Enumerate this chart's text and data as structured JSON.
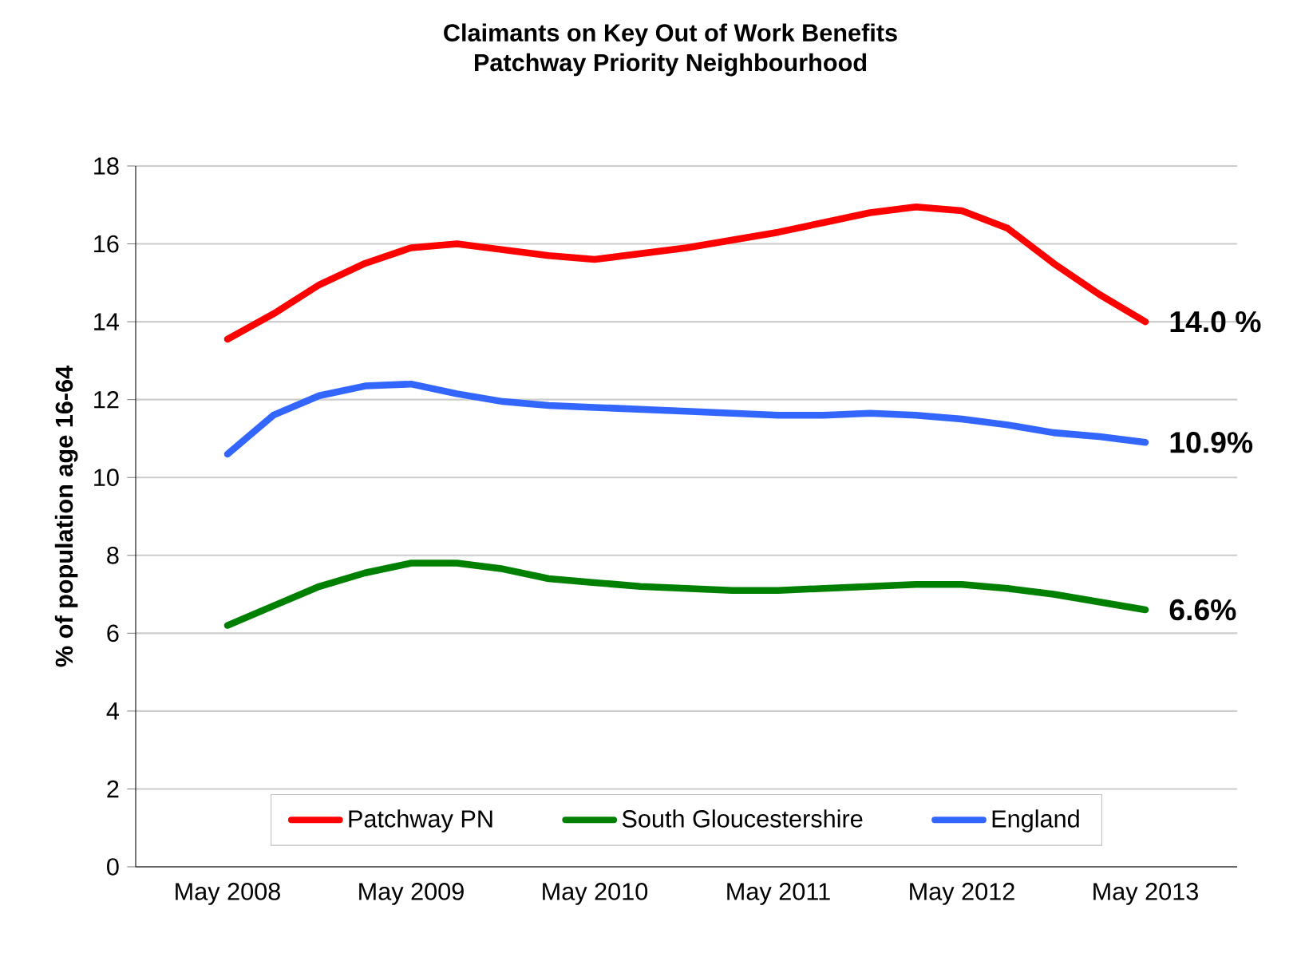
{
  "chart_data": {
    "type": "line",
    "title": "Claimants on Key Out of Work Benefits",
    "subtitle": "Patchway Priority Neighbourhood",
    "ylabel": "% of population age 16-64",
    "categories": [
      "May 2008",
      null,
      null,
      null,
      "May 2009",
      null,
      null,
      null,
      "May 2010",
      null,
      null,
      null,
      "May 2011",
      null,
      null,
      null,
      "May 2012",
      null,
      null,
      null,
      "May 2013"
    ],
    "series": [
      {
        "name": "Patchway PN",
        "color": "#ff0000",
        "values": [
          13.55,
          14.2,
          14.95,
          15.5,
          15.9,
          16.0,
          15.85,
          15.7,
          15.6,
          15.75,
          15.9,
          16.1,
          16.3,
          16.55,
          16.8,
          16.95,
          16.85,
          16.4,
          15.5,
          14.7,
          14.0
        ]
      },
      {
        "name": "South Gloucestershire",
        "color": "#008000",
        "values": [
          6.2,
          6.7,
          7.2,
          7.55,
          7.8,
          7.8,
          7.65,
          7.4,
          7.3,
          7.2,
          7.15,
          7.1,
          7.1,
          7.15,
          7.2,
          7.25,
          7.25,
          7.15,
          7.0,
          6.8,
          6.6
        ]
      },
      {
        "name": "England",
        "color": "#3366ff",
        "values": [
          10.6,
          11.6,
          12.1,
          12.35,
          12.4,
          12.15,
          11.95,
          11.85,
          11.8,
          11.75,
          11.7,
          11.65,
          11.6,
          11.6,
          11.65,
          11.6,
          11.5,
          11.35,
          11.15,
          11.05,
          10.9
        ]
      }
    ],
    "annotations": [
      {
        "text": "14.0 %",
        "x": "May 2013",
        "y": 14.0
      },
      {
        "text": "10.9%",
        "x": "May 2013",
        "y": 10.9
      },
      {
        "text": "6.6%",
        "x": "May 2013",
        "y": 6.6
      }
    ],
    "ylim": [
      0,
      18
    ],
    "yticks": [
      0,
      2,
      4,
      6,
      8,
      10,
      12,
      14,
      16,
      18
    ],
    "grid": "y",
    "legend": "bottom",
    "marker": "none",
    "line_style": "solid"
  }
}
